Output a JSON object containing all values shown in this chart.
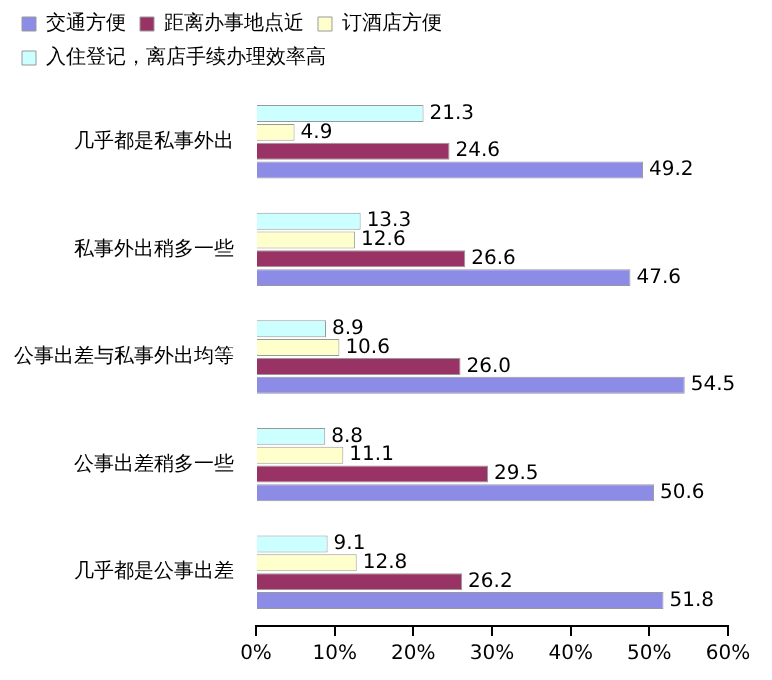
{
  "chart_data": {
    "type": "bar",
    "orientation": "horizontal",
    "legend": "top",
    "grid": false,
    "categories": [
      "几乎都是私事外出",
      "私事外出稍多一些",
      "公事出差与私事外出均等",
      "公事出差稍多一些",
      "几乎都是公事出差"
    ],
    "series": [
      {
        "name": "交通方便",
        "color": "#8c8ce6",
        "values": [
          49.2,
          47.6,
          54.5,
          50.6,
          51.8
        ],
        "value_labels": [
          "49.2",
          "47.6",
          "54.5",
          "50.6",
          "51.8"
        ]
      },
      {
        "name": "距离办事地点近",
        "color": "#993366",
        "values": [
          24.6,
          26.6,
          26.0,
          29.5,
          26.2
        ],
        "value_labels": [
          "24.6",
          "26.6",
          "26.0",
          "29.5",
          "26.2"
        ]
      },
      {
        "name": "订酒店方便",
        "color": "#ffffcc",
        "values": [
          4.9,
          12.6,
          10.6,
          11.1,
          12.8
        ],
        "value_labels": [
          "4.9",
          "12.6",
          "10.6",
          "11.1",
          "12.8"
        ]
      },
      {
        "name": "入住登记，离店手续办理效率高",
        "color": "#ccffff",
        "values": [
          21.3,
          13.3,
          8.9,
          8.8,
          9.1
        ],
        "value_labels": [
          "21.3",
          "13.3",
          "8.9",
          "8.8",
          "9.1"
        ]
      }
    ],
    "xlim": [
      0,
      60
    ],
    "xticks": [
      {
        "value": 0,
        "label": "0%"
      },
      {
        "value": 10,
        "label": "10%"
      },
      {
        "value": 20,
        "label": "20%"
      },
      {
        "value": 30,
        "label": "30%"
      },
      {
        "value": 40,
        "label": "40%"
      },
      {
        "value": 50,
        "label": "50%"
      },
      {
        "value": 60,
        "label": "60%"
      }
    ]
  }
}
